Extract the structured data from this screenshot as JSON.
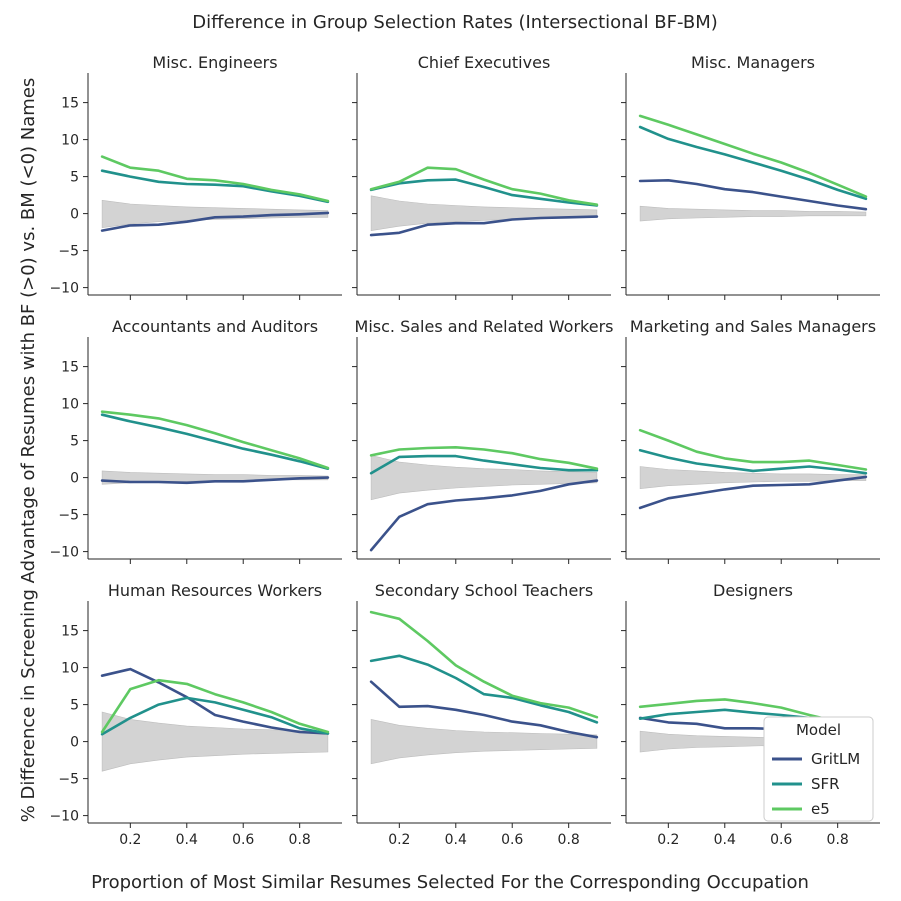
{
  "chart_data": {
    "type": "line",
    "title": "Difference in Group Selection Rates (Intersectional BF-BM)",
    "xlabel": "Proportion of Most Similar Resumes Selected For the Corresponding Occupation",
    "ylabel": "% Difference in Screening Advantage of Resumes with BF (>0) vs. BM (<0) Names",
    "x": [
      0.1,
      0.2,
      0.3,
      0.4,
      0.5,
      0.6,
      0.7,
      0.8,
      0.9
    ],
    "xlim": [
      0.05,
      0.95
    ],
    "ylim": [
      -11,
      19
    ],
    "xticks": [
      0.2,
      0.4,
      0.6,
      0.8
    ],
    "xtick_labels": [
      "0.2",
      "0.4",
      "0.6",
      "0.8"
    ],
    "yticks": [
      -10,
      -5,
      0,
      5,
      10,
      15
    ],
    "ytick_labels": [
      "−10",
      "−5",
      "0",
      "5",
      "10",
      "15"
    ],
    "legend": {
      "title": "Model",
      "placement": "lower-right of bottom-right panel",
      "entries": [
        "GritLM",
        "SFR",
        "e5"
      ]
    },
    "colors": {
      "GritLM": "#3b528b",
      "SFR": "#21918c",
      "e5": "#5ec962",
      "band": "#d3d3d3"
    },
    "panels": [
      {
        "title": "Misc. Engineers",
        "band_upper": [
          1.8,
          1.3,
          1.1,
          0.9,
          0.8,
          0.7,
          0.6,
          0.5,
          0.4
        ],
        "band_lower": [
          -1.9,
          -1.4,
          -1.1,
          -0.9,
          -0.8,
          -0.7,
          -0.6,
          -0.5,
          -0.5
        ],
        "series": [
          {
            "name": "GritLM",
            "values": [
              -2.3,
              -1.6,
              -1.5,
              -1.1,
              -0.5,
              -0.4,
              -0.2,
              -0.1,
              0.1
            ]
          },
          {
            "name": "SFR",
            "values": [
              5.8,
              5.0,
              4.3,
              4.0,
              3.9,
              3.7,
              3.0,
              2.4,
              1.6
            ]
          },
          {
            "name": "e5",
            "values": [
              7.7,
              6.2,
              5.8,
              4.7,
              4.5,
              4.0,
              3.2,
              2.6,
              1.7
            ]
          }
        ]
      },
      {
        "title": "Chief Executives",
        "band_upper": [
          2.4,
          1.7,
          1.3,
          1.1,
          0.9,
          0.8,
          0.7,
          0.6,
          0.5
        ],
        "band_lower": [
          -2.3,
          -1.7,
          -1.3,
          -1.1,
          -0.9,
          -0.8,
          -0.7,
          -0.6,
          -0.5
        ],
        "series": [
          {
            "name": "GritLM",
            "values": [
              -2.9,
              -2.6,
              -1.5,
              -1.3,
              -1.3,
              -0.8,
              -0.6,
              -0.5,
              -0.4
            ]
          },
          {
            "name": "SFR",
            "values": [
              3.2,
              4.1,
              4.5,
              4.6,
              3.6,
              2.5,
              2.0,
              1.5,
              1.1
            ]
          },
          {
            "name": "e5",
            "values": [
              3.3,
              4.3,
              6.2,
              6.0,
              4.6,
              3.3,
              2.7,
              1.8,
              1.2
            ]
          }
        ]
      },
      {
        "title": "Misc. Managers",
        "band_upper": [
          1.0,
          0.7,
          0.6,
          0.5,
          0.4,
          0.4,
          0.3,
          0.3,
          0.2
        ],
        "band_lower": [
          -1.0,
          -0.7,
          -0.6,
          -0.5,
          -0.4,
          -0.4,
          -0.3,
          -0.3,
          -0.3
        ],
        "series": [
          {
            "name": "GritLM",
            "values": [
              4.4,
              4.5,
              4.0,
              3.3,
              2.9,
              2.3,
              1.7,
              1.1,
              0.6
            ]
          },
          {
            "name": "SFR",
            "values": [
              11.7,
              10.1,
              9.0,
              8.0,
              6.9,
              5.8,
              4.6,
              3.2,
              2.0
            ]
          },
          {
            "name": "e5",
            "values": [
              13.2,
              12.0,
              10.7,
              9.4,
              8.1,
              6.9,
              5.5,
              3.9,
              2.3
            ]
          }
        ]
      },
      {
        "title": "Accountants and Auditors",
        "band_upper": [
          0.9,
          0.7,
          0.6,
          0.5,
          0.4,
          0.4,
          0.3,
          0.3,
          0.2
        ],
        "band_lower": [
          -0.9,
          -0.7,
          -0.6,
          -0.5,
          -0.4,
          -0.4,
          -0.3,
          -0.3,
          -0.3
        ],
        "series": [
          {
            "name": "GritLM",
            "values": [
              -0.4,
              -0.6,
              -0.6,
              -0.7,
              -0.5,
              -0.5,
              -0.3,
              -0.1,
              0.0
            ]
          },
          {
            "name": "SFR",
            "values": [
              8.5,
              7.6,
              6.8,
              5.9,
              4.9,
              3.9,
              3.1,
              2.2,
              1.2
            ]
          },
          {
            "name": "e5",
            "values": [
              8.9,
              8.5,
              8.0,
              7.1,
              6.0,
              4.8,
              3.7,
              2.6,
              1.3
            ]
          }
        ]
      },
      {
        "title": "Misc. Sales and Related Workers",
        "band_upper": [
          3.0,
          2.1,
          1.7,
          1.4,
          1.2,
          1.1,
          0.9,
          0.8,
          0.7
        ],
        "band_lower": [
          -3.0,
          -2.1,
          -1.7,
          -1.4,
          -1.2,
          -1.0,
          -0.9,
          -0.8,
          -0.7
        ],
        "series": [
          {
            "name": "GritLM",
            "values": [
              -9.8,
              -5.3,
              -3.6,
              -3.1,
              -2.8,
              -2.4,
              -1.8,
              -0.9,
              -0.4
            ]
          },
          {
            "name": "SFR",
            "values": [
              0.6,
              2.8,
              2.9,
              2.9,
              2.3,
              1.8,
              1.3,
              1.0,
              1.0
            ]
          },
          {
            "name": "e5",
            "values": [
              3.0,
              3.8,
              4.0,
              4.1,
              3.8,
              3.3,
              2.5,
              2.0,
              1.2
            ]
          }
        ]
      },
      {
        "title": "Marketing and Sales Managers",
        "band_upper": [
          1.5,
          1.1,
          0.9,
          0.7,
          0.6,
          0.5,
          0.5,
          0.4,
          0.4
        ],
        "band_lower": [
          -1.5,
          -1.1,
          -0.9,
          -0.7,
          -0.6,
          -0.5,
          -0.5,
          -0.4,
          -0.4
        ],
        "series": [
          {
            "name": "GritLM",
            "values": [
              -4.1,
              -2.8,
              -2.2,
              -1.6,
              -1.1,
              -1.0,
              -0.9,
              -0.4,
              0.1
            ]
          },
          {
            "name": "SFR",
            "values": [
              3.7,
              2.7,
              1.9,
              1.4,
              0.9,
              1.2,
              1.5,
              1.1,
              0.6
            ]
          },
          {
            "name": "e5",
            "values": [
              6.4,
              5.0,
              3.5,
              2.6,
              2.1,
              2.1,
              2.3,
              1.7,
              1.1
            ]
          }
        ]
      },
      {
        "title": "Human Resources Workers",
        "band_upper": [
          4.0,
          3.0,
          2.5,
          2.1,
          1.9,
          1.7,
          1.6,
          1.5,
          1.4
        ],
        "band_lower": [
          -4.0,
          -3.0,
          -2.5,
          -2.1,
          -1.9,
          -1.7,
          -1.6,
          -1.5,
          -1.4
        ],
        "series": [
          {
            "name": "GritLM",
            "values": [
              8.9,
              9.8,
              8.0,
              6.0,
              3.6,
              2.7,
              1.9,
              1.3,
              1.1
            ]
          },
          {
            "name": "SFR",
            "values": [
              1.0,
              3.2,
              5.0,
              5.9,
              5.3,
              4.3,
              3.3,
              1.8,
              1.1
            ]
          },
          {
            "name": "e5",
            "values": [
              1.3,
              7.1,
              8.3,
              7.8,
              6.4,
              5.3,
              4.0,
              2.4,
              1.3
            ]
          }
        ]
      },
      {
        "title": "Secondary School Teachers",
        "band_upper": [
          3.0,
          2.2,
          1.8,
          1.5,
          1.3,
          1.2,
          1.1,
          1.0,
          0.9
        ],
        "band_lower": [
          -3.0,
          -2.2,
          -1.8,
          -1.5,
          -1.3,
          -1.2,
          -1.1,
          -1.0,
          -0.9
        ],
        "series": [
          {
            "name": "GritLM",
            "values": [
              8.1,
              4.7,
              4.8,
              4.3,
              3.6,
              2.7,
              2.2,
              1.3,
              0.6
            ]
          },
          {
            "name": "SFR",
            "values": [
              10.9,
              11.6,
              10.4,
              8.6,
              6.4,
              5.9,
              4.9,
              4.0,
              2.6
            ]
          },
          {
            "name": "e5",
            "values": [
              17.5,
              16.6,
              13.6,
              10.3,
              8.1,
              6.2,
              5.2,
              4.6,
              3.3
            ]
          }
        ]
      },
      {
        "title": "Designers",
        "band_upper": [
          1.4,
          1.0,
          0.8,
          0.7,
          0.6,
          0.5,
          0.5,
          0.4,
          0.4
        ],
        "band_lower": [
          -1.4,
          -1.0,
          -0.8,
          -0.7,
          -0.6,
          -0.5,
          -0.5,
          -0.4,
          -0.4
        ],
        "series": [
          {
            "name": "GritLM",
            "values": [
              3.2,
              2.6,
              2.4,
              1.8,
              1.8,
              1.7,
              1.6,
              1.2,
              0.9
            ]
          },
          {
            "name": "SFR",
            "values": [
              3.1,
              3.7,
              4.0,
              4.3,
              3.9,
              3.6,
              3.2,
              2.4,
              1.5
            ]
          },
          {
            "name": "e5",
            "values": [
              4.7,
              5.1,
              5.5,
              5.7,
              5.2,
              4.6,
              3.6,
              2.7,
              1.9
            ]
          }
        ]
      }
    ]
  }
}
